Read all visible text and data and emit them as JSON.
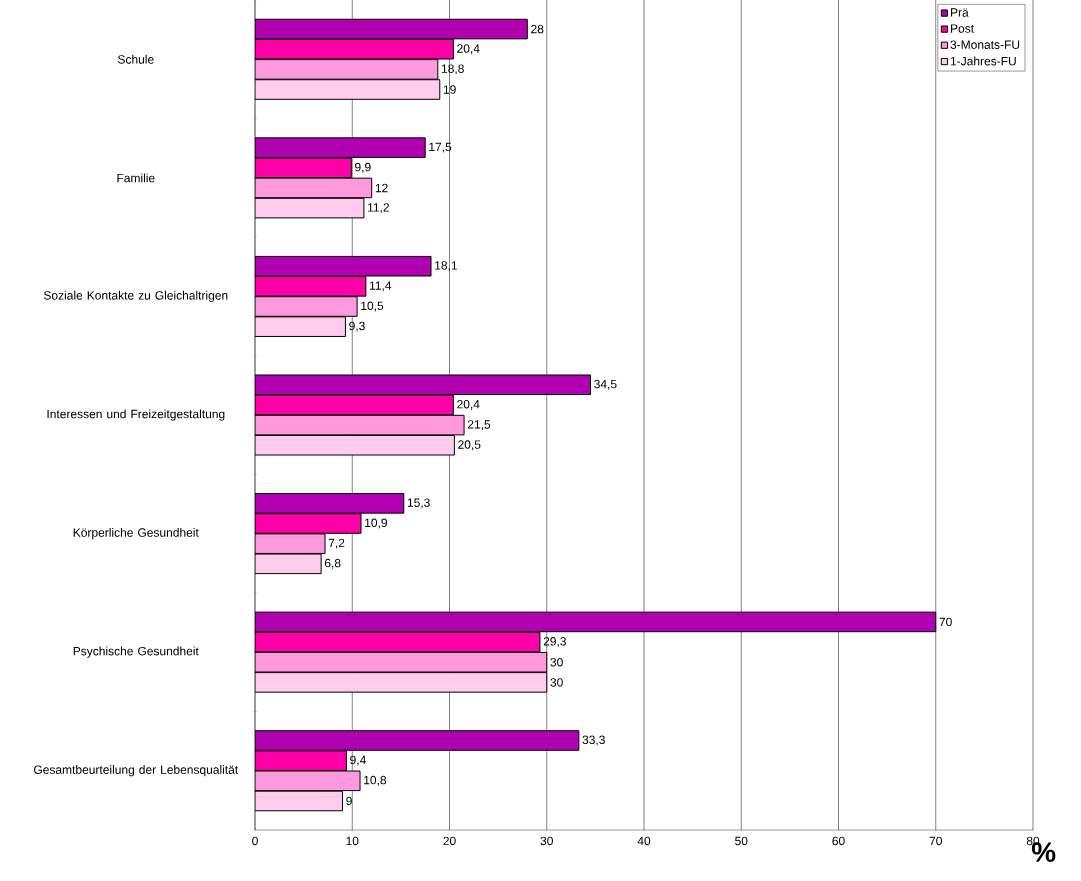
{
  "chart_data": {
    "type": "bar",
    "orientation": "horizontal",
    "xlabel": "%",
    "categories": [
      "Schule",
      "Familie",
      "Soziale Kontakte zu Gleichaltrigen",
      "Interessen und Freizeitgestaltung",
      "Körperliche Gesundheit",
      "Psychische Gesundheit",
      "Gesamtbeurteilung der Lebensqualität"
    ],
    "series": [
      {
        "name": "Prä",
        "color": "#b000b0",
        "values": [
          28,
          17.5,
          18.1,
          34.5,
          15.3,
          70,
          33.3
        ],
        "value_labels": [
          "28",
          "17,5",
          "18,1",
          "34,5",
          "15,3",
          "70",
          "33,3"
        ]
      },
      {
        "name": "Post",
        "color": "#ff00a8",
        "values": [
          20.4,
          9.9,
          11.4,
          20.4,
          10.9,
          29.3,
          9.4
        ],
        "value_labels": [
          "20,4",
          "9,9",
          "11,4",
          "20,4",
          "10,9",
          "29,3",
          "9,4"
        ]
      },
      {
        "name": "3-Monats-FU",
        "color": "#ff99dd",
        "values": [
          18.8,
          12,
          10.5,
          21.5,
          7.2,
          30,
          10.8
        ],
        "value_labels": [
          "18,8",
          "12",
          "10,5",
          "21,5",
          "7,2",
          "30",
          "10,8"
        ]
      },
      {
        "name": "1-Jahres-FU",
        "color": "#ffccee",
        "values": [
          19,
          11.2,
          9.3,
          20.5,
          6.8,
          30,
          9
        ],
        "value_labels": [
          "19",
          "11,2",
          "9,3",
          "20,5",
          "6,8",
          "30",
          "9"
        ]
      }
    ],
    "xlim": [
      0,
      80
    ],
    "xticks": [
      0,
      10,
      20,
      30,
      40,
      50,
      60,
      70,
      80
    ],
    "grid": "x",
    "legend": "top right"
  }
}
